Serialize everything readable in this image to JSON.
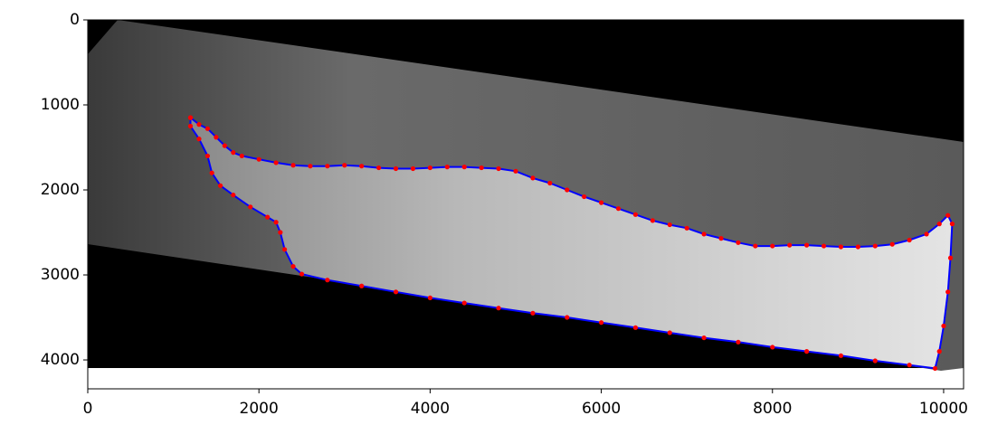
{
  "chart_data": {
    "type": "scatter",
    "xlim": [
      0,
      10233
    ],
    "ylim": [
      4340,
      0
    ],
    "xticks": [
      0,
      2000,
      4000,
      6000,
      8000,
      10000
    ],
    "yticks": [
      0,
      1000,
      2000,
      3000,
      4000
    ],
    "line_color": "#0000ff",
    "marker_color": "#ff0000",
    "x": [
      1200,
      1300,
      1400,
      1500,
      1600,
      1700,
      1800,
      2000,
      2200,
      2400,
      2600,
      2800,
      3000,
      3200,
      3400,
      3600,
      3800,
      4000,
      4200,
      4400,
      4600,
      4800,
      5000,
      5200,
      5400,
      5600,
      5800,
      6000,
      6200,
      6400,
      6600,
      6800,
      7000,
      7200,
      7400,
      7600,
      7800,
      8000,
      8200,
      8400,
      8600,
      8800,
      9000,
      9200,
      9400,
      9600,
      9800,
      9950,
      10050,
      10100,
      10080,
      10050,
      10000,
      9950,
      9900,
      9600,
      9200,
      8800,
      8400,
      8000,
      7600,
      7200,
      6800,
      6400,
      6000,
      5600,
      5200,
      4800,
      4400,
      4000,
      3600,
      3200,
      2800,
      2500,
      2400,
      2300,
      2250,
      2200,
      2100,
      1900,
      1700,
      1550,
      1450,
      1400,
      1300,
      1200,
      1200
    ],
    "y": [
      1150,
      1230,
      1280,
      1380,
      1480,
      1560,
      1600,
      1640,
      1680,
      1710,
      1720,
      1720,
      1710,
      1720,
      1740,
      1750,
      1750,
      1740,
      1730,
      1730,
      1740,
      1750,
      1780,
      1860,
      1920,
      2000,
      2080,
      2150,
      2220,
      2290,
      2360,
      2410,
      2450,
      2520,
      2570,
      2620,
      2660,
      2660,
      2650,
      2650,
      2660,
      2670,
      2670,
      2660,
      2640,
      2590,
      2520,
      2400,
      2300,
      2400,
      2800,
      3200,
      3600,
      3900,
      4100,
      4060,
      4010,
      3950,
      3900,
      3850,
      3790,
      3740,
      3680,
      3620,
      3560,
      3500,
      3450,
      3390,
      3330,
      3270,
      3200,
      3130,
      3060,
      2990,
      2900,
      2700,
      2500,
      2380,
      2320,
      2200,
      2060,
      1950,
      1800,
      1600,
      1400,
      1250,
      1150
    ]
  }
}
